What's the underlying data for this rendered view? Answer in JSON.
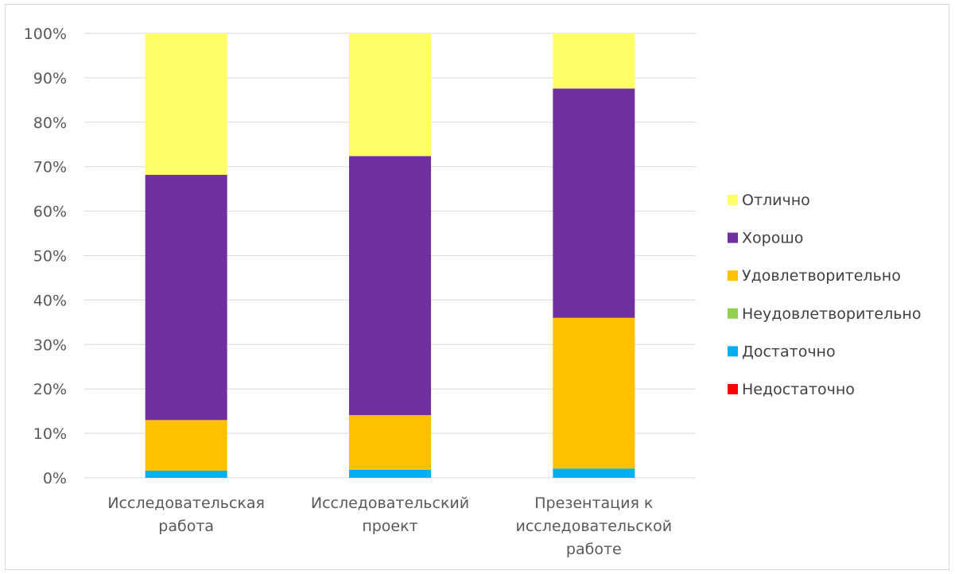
{
  "chart_data": {
    "type": "bar",
    "stacked": "percent",
    "categories": [
      [
        "Исследовательская",
        "работа"
      ],
      [
        "Исследовательский",
        "проект"
      ],
      [
        "Презентация к",
        "исследовательской",
        "работе"
      ]
    ],
    "series": [
      {
        "name": "Недостаточно",
        "color": "#ff0000",
        "values": [
          0,
          0,
          0
        ]
      },
      {
        "name": "Достаточно",
        "color": "#00b0f0",
        "values": [
          1.6,
          1.8,
          2.1
        ]
      },
      {
        "name": "Неудовлетворительно",
        "color": "#92d050",
        "values": [
          0,
          0,
          0
        ]
      },
      {
        "name": "Удовлетворительно",
        "color": "#ffc000",
        "values": [
          11.4,
          12.3,
          33.9
        ]
      },
      {
        "name": "Хорошо",
        "color": "#7030a0",
        "values": [
          55.2,
          58.3,
          51.6
        ]
      },
      {
        "name": "Отлично",
        "color": "#ffff66",
        "values": [
          31.8,
          27.6,
          12.4
        ]
      }
    ],
    "legend_order": [
      "Отлично",
      "Хорошо",
      "Удовлетворительно",
      "Неудовлетворительно",
      "Достаточно",
      "Недостаточно"
    ],
    "y_ticks": [
      "0%",
      "10%",
      "20%",
      "30%",
      "40%",
      "50%",
      "60%",
      "70%",
      "80%",
      "90%",
      "100%"
    ],
    "ylim": [
      0,
      100
    ],
    "grid": true,
    "legend_position": "right",
    "title": "",
    "xlabel": "",
    "ylabel": ""
  },
  "colors": {
    "gridline": "#d9d9d9",
    "axis_text": "#595959",
    "legend_text": "#404040"
  }
}
